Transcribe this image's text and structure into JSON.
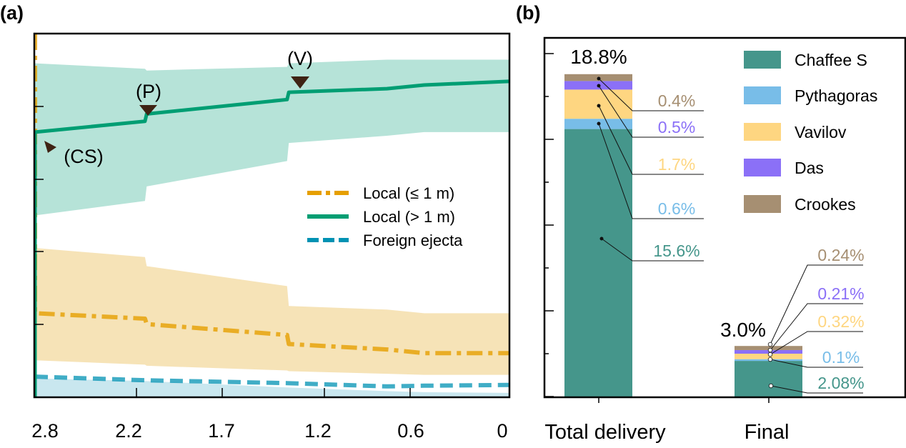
{
  "figure": {
    "panel_a_label": "(a)",
    "panel_b_label": "(b)"
  },
  "chart_data": [
    {
      "type": "line",
      "panel": "a",
      "title": "",
      "xlabel": "",
      "ylabel": "",
      "x_ticks": [
        "2.8",
        "2.2",
        "1.7",
        "1.2",
        "0.6",
        "0"
      ],
      "xlim": [
        2.8,
        0
      ],
      "ylim": [
        0,
        100
      ],
      "y_ticks_labeled": false,
      "grid": false,
      "legend": {
        "position": "center-right",
        "entries": [
          {
            "label": "Local (≤ 1 m)",
            "style": "dash-dot",
            "color": "#E69F00"
          },
          {
            "label": "Local (> 1 m)",
            "style": "solid",
            "color": "#009E73"
          },
          {
            "label": "Foreign ejecta",
            "style": "dashed",
            "color": "#0092B3"
          }
        ]
      },
      "annotations": [
        {
          "label": "(CS)",
          "x": 2.75,
          "marker": "arrow-down-right"
        },
        {
          "label": "(P)",
          "x": 2.15,
          "marker": "arrow-down"
        },
        {
          "label": "(V)",
          "x": 1.3,
          "marker": "arrow-down"
        }
      ],
      "series": [
        {
          "name": "Local (> 1 m)",
          "color": "#009E73",
          "band_color": "#B2E1D6",
          "x": [
            2.8,
            2.8,
            2.15,
            2.14,
            1.31,
            1.3,
            0.72,
            0.5,
            0
          ],
          "y": [
            0,
            73,
            76,
            78,
            82,
            84,
            85,
            86,
            87
          ],
          "upper": [
            92,
            92,
            90.5,
            90,
            91,
            92,
            93,
            93,
            93
          ],
          "lower": [
            50,
            50,
            54,
            58,
            65,
            70,
            72,
            73,
            73
          ]
        },
        {
          "name": "Local (≤ 1 m)",
          "color": "#E69F00",
          "band_color": "#F6E2B3",
          "x": [
            2.8,
            2.8,
            2.15,
            2.14,
            1.31,
            1.3,
            0.72,
            0.5,
            0
          ],
          "y": [
            100,
            23,
            21.5,
            20,
            17,
            14.5,
            13,
            12,
            12
          ],
          "upper": [
            41,
            41,
            38.5,
            36,
            30.5,
            25,
            24,
            23,
            23
          ],
          "lower": [
            10,
            10,
            8.8,
            8.5,
            7.2,
            7,
            6.3,
            6,
            6
          ]
        },
        {
          "name": "Foreign ejecta",
          "color": "#0092B3",
          "band_color": "#B2DDE8",
          "x": [
            2.8,
            2.15,
            1.31,
            0.72,
            0.5,
            0
          ],
          "y": [
            5.5,
            4.5,
            3.7,
            2.8,
            3.0,
            3.2
          ],
          "upper": [
            5,
            4.3,
            2.5,
            1.5,
            1.2,
            1
          ],
          "lower": [
            0,
            0,
            0,
            0,
            0,
            0
          ]
        }
      ]
    },
    {
      "type": "bar",
      "stacked": true,
      "panel": "b",
      "title": "",
      "xlabel": "",
      "ylabel": "",
      "categories": [
        "Total delivery",
        "Final"
      ],
      "ylim": [
        0,
        20.3
      ],
      "y_ticks_labeled": false,
      "y_major_step": 5,
      "y_minor_step": 2.5,
      "totals": [
        "18.8%",
        "3.0%"
      ],
      "totals_values": [
        18.8,
        3.0
      ],
      "legend": {
        "position": "top-right",
        "entries": [
          "Chaffee S",
          "Pythagoras",
          "Vavilov",
          "Das",
          "Crookes"
        ]
      },
      "series": [
        {
          "name": "Chaffee S",
          "color": "#45968B",
          "values": [
            15.6,
            2.08
          ],
          "labels": [
            "15.6%",
            "2.08%"
          ]
        },
        {
          "name": "Pythagoras",
          "color": "#78BDE8",
          "values": [
            0.6,
            0.1
          ],
          "labels": [
            "0.6%",
            "0.1%"
          ]
        },
        {
          "name": "Vavilov",
          "color": "#FED681",
          "values": [
            1.7,
            0.32
          ],
          "labels": [
            "1.7%",
            "0.32%"
          ]
        },
        {
          "name": "Das",
          "color": "#8B70F7",
          "values": [
            0.5,
            0.21
          ],
          "labels": [
            "0.5%",
            "0.21%"
          ]
        },
        {
          "name": "Crookes",
          "color": "#A68F72",
          "values": [
            0.4,
            0.24
          ],
          "labels": [
            "0.4%",
            "0.24%"
          ]
        }
      ]
    }
  ]
}
